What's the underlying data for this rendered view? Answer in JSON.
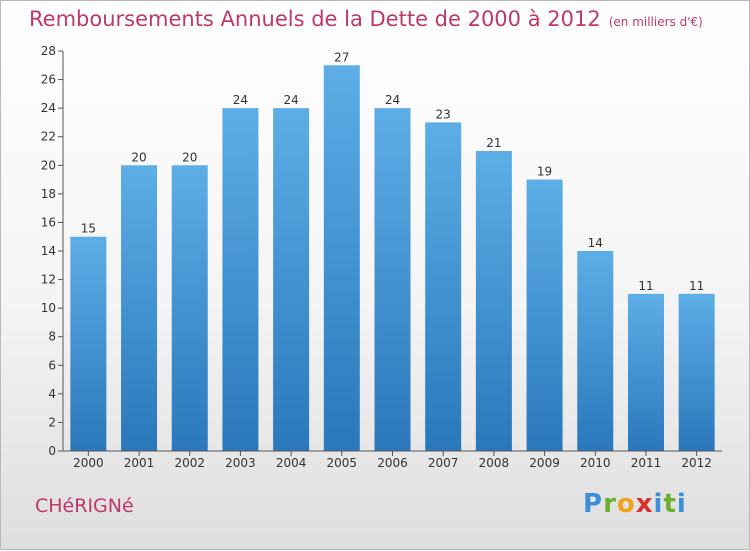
{
  "header": {
    "title": "Remboursements Annuels de la Dette de 2000 à 2012",
    "unit": "(en milliers d'€)"
  },
  "footer": {
    "place": "CHéRIGNé",
    "logo_text": "Proxiti"
  },
  "colors": {
    "title": "#c0386a",
    "bar_top": "#5dade6",
    "bar_bottom": "#2a78bb"
  },
  "chart_data": {
    "type": "bar",
    "categories": [
      "2000",
      "2001",
      "2002",
      "2003",
      "2004",
      "2005",
      "2006",
      "2007",
      "2008",
      "2009",
      "2010",
      "2011",
      "2012"
    ],
    "values": [
      15,
      20,
      20,
      24,
      24,
      27,
      24,
      23,
      21,
      19,
      14,
      11,
      11
    ],
    "ylim": [
      0,
      28
    ],
    "yticks": [
      0,
      2,
      4,
      6,
      8,
      10,
      12,
      14,
      16,
      18,
      20,
      22,
      24,
      26,
      28
    ],
    "grid": false,
    "title": "Remboursements Annuels de la Dette de 2000 à 2012",
    "xlabel": "",
    "ylabel": ""
  }
}
